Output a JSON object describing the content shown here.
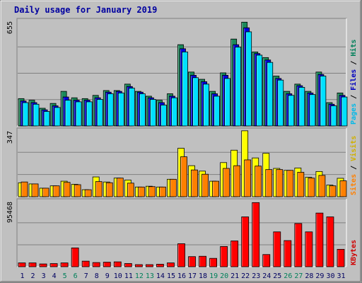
{
  "chart_data": [
    {
      "type": "bar",
      "panel": "hits_files_pages",
      "title": "Daily usage for January 2019",
      "y_max_label": "655",
      "ylim": [
        0,
        655
      ],
      "ylabel_parts": [
        "Pages",
        "Files",
        "Hits"
      ],
      "categories": [
        "1",
        "2",
        "3",
        "4",
        "5",
        "6",
        "7",
        "8",
        "9",
        "10",
        "11",
        "12",
        "13",
        "14",
        "15",
        "16",
        "17",
        "18",
        "19",
        "20",
        "21",
        "22",
        "23",
        "24",
        "25",
        "26",
        "27",
        "28",
        "29",
        "30",
        "31"
      ],
      "series": [
        {
          "name": "Hits",
          "color": "#1a8a5a",
          "values": [
            170,
            160,
            110,
            140,
            215,
            175,
            170,
            190,
            220,
            220,
            260,
            215,
            185,
            160,
            200,
            505,
            335,
            290,
            215,
            330,
            540,
            645,
            460,
            425,
            310,
            215,
            260,
            215,
            335,
            145,
            205
          ]
        },
        {
          "name": "Files",
          "color": "#0000e0",
          "values": [
            155,
            145,
            100,
            125,
            180,
            160,
            160,
            175,
            210,
            215,
            245,
            210,
            175,
            145,
            185,
            480,
            315,
            275,
            200,
            315,
            505,
            610,
            450,
            410,
            295,
            200,
            250,
            205,
            320,
            135,
            190
          ]
        },
        {
          "name": "Pages",
          "color": "#00e0ff",
          "values": [
            145,
            135,
            90,
            115,
            160,
            150,
            150,
            165,
            200,
            205,
            235,
            200,
            165,
            130,
            175,
            460,
            300,
            260,
            185,
            295,
            490,
            585,
            440,
            395,
            285,
            190,
            240,
            195,
            310,
            125,
            180
          ]
        }
      ]
    },
    {
      "type": "bar",
      "panel": "visits_sites",
      "y_max_label": "347",
      "ylim": [
        0,
        347
      ],
      "ylabel_parts": [
        "Sites",
        "Visits"
      ],
      "series": [
        {
          "name": "Visits",
          "color": "#ffff00",
          "values": [
            72,
            66,
            44,
            56,
            80,
            64,
            36,
            102,
            76,
            96,
            86,
            50,
            54,
            50,
            90,
            250,
            160,
            132,
            80,
            176,
            240,
            340,
            200,
            224,
            146,
            136,
            148,
            100,
            130,
            60,
            95
          ]
        },
        {
          "name": "Sites",
          "color": "#ff8000",
          "values": [
            76,
            66,
            44,
            56,
            74,
            62,
            36,
            78,
            72,
            96,
            70,
            50,
            52,
            50,
            90,
            206,
            138,
            116,
            80,
            146,
            160,
            190,
            158,
            140,
            140,
            136,
            126,
            96,
            110,
            56,
            82
          ]
        }
      ]
    },
    {
      "type": "bar",
      "panel": "kbytes",
      "y_max_label": "95468",
      "ylim": [
        0,
        95468
      ],
      "ylabel_parts": [
        "KBytes"
      ],
      "series": [
        {
          "name": "KBytes",
          "color": "#ff0000",
          "values": [
            5500,
            5500,
            4000,
            4500,
            5500,
            27000,
            8000,
            6000,
            6500,
            7000,
            4600,
            3000,
            3000,
            3600,
            5500,
            33000,
            14500,
            15000,
            12000,
            29000,
            37000,
            71500,
            92000,
            17500,
            50000,
            37500,
            62000,
            50000,
            77000,
            71500,
            25000
          ]
        }
      ]
    }
  ],
  "x_tick_colors": {
    "weekday": "#000060",
    "weekend": "#00805a"
  },
  "weekend_days": [
    5,
    6,
    12,
    13,
    19,
    20,
    26,
    27
  ]
}
